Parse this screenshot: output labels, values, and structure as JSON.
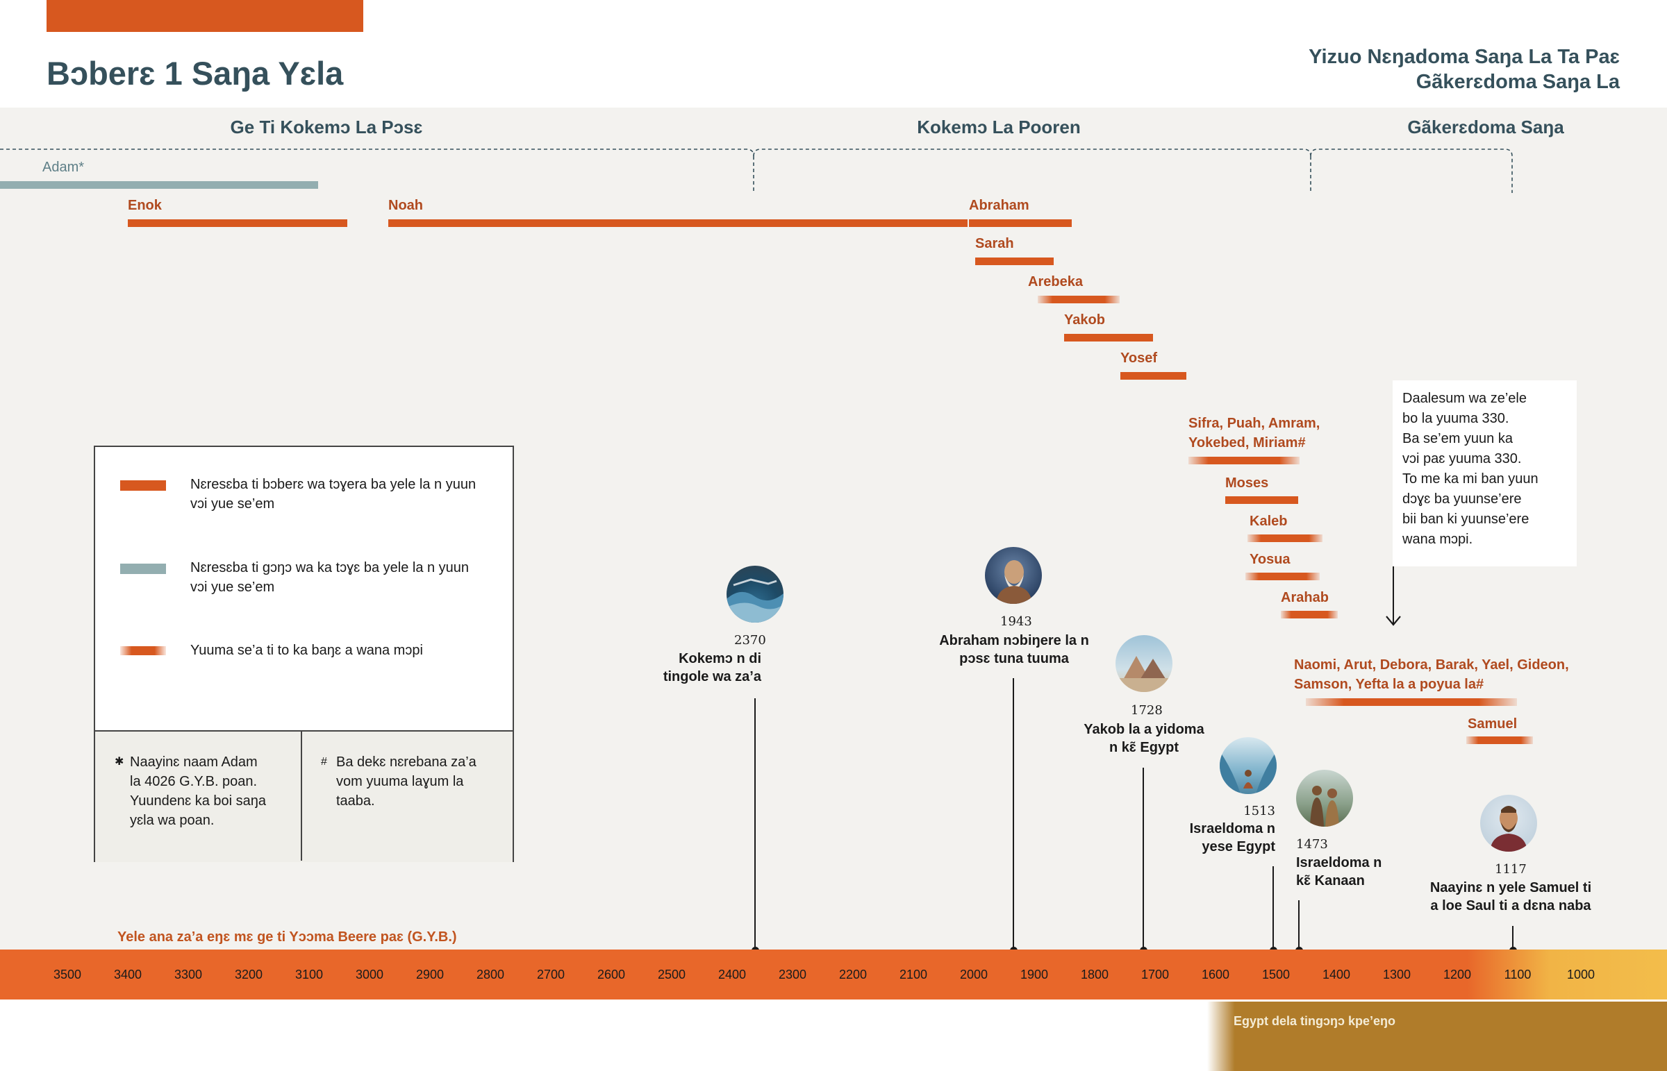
{
  "title": "Bɔberɛ 1 Saŋa Yɛla",
  "top_right": {
    "line1": "Yizuo Nɛŋadoma Saŋa La Ta Paɛ",
    "line2": "Gãkerɛdoma Saŋa La"
  },
  "periods": [
    "Ge Ti Kokemɔ La Pɔsɛ",
    "Kokemɔ La Pooren",
    "Gãkerɛdoma Saŋa"
  ],
  "people": [
    {
      "name": "Adam*",
      "style": "gray"
    },
    {
      "name": "Enok",
      "style": "solid"
    },
    {
      "name": "Noah",
      "style": "solid"
    },
    {
      "name": "Abraham",
      "style": "solid"
    },
    {
      "name": "Sarah",
      "style": "solid"
    },
    {
      "name": "Arebeka",
      "style": "fade"
    },
    {
      "name": "Yakob",
      "style": "solid"
    },
    {
      "name": "Yosef",
      "style": "solid"
    },
    {
      "name": "Sifra, Puah, Amram,",
      "name2": "Yokebed, Miriam#",
      "style": "fade"
    },
    {
      "name": "Moses",
      "style": "solid"
    },
    {
      "name": "Kaleb",
      "style": "fade"
    },
    {
      "name": "Yosua",
      "style": "fade"
    },
    {
      "name": "Arahab",
      "style": "fade"
    },
    {
      "name": "Naomi, Arut, Debora, Barak, Yael, Gideon,",
      "name2": "Samson, Yefta la a poyua la#",
      "style": "fade"
    },
    {
      "name": "Samuel",
      "style": "fade"
    }
  ],
  "legend": {
    "solid": {
      "line1": "Nɛresɛba ti bɔberɛ wa tɔɣera ba yele la n yuun",
      "line2": "vɔi yue se’em",
      "color": "#d7581f"
    },
    "gray": {
      "line1": "Nɛresɛba ti gɔŋɔ wa ka tɔɣɛ ba yele la n yuun",
      "line2": "vɔi yue se’em",
      "color": "#93aeb0"
    },
    "fade": {
      "line1": "Yuuma se’a ti to ka baŋɛ a wana mɔpi"
    }
  },
  "notes": {
    "asterisk": {
      "symbol": "✱",
      "lines": [
        "Naayinɛ naam Adam",
        "la 4026 G.Y.B. poan.",
        "Yuundenɛ ka boi saŋa",
        "yɛla wa poan."
      ]
    },
    "hash": {
      "symbol": "#",
      "lines": [
        "Ba dekɛ nɛrebana za’a",
        "vom yuuma laɣum la",
        "taaba."
      ]
    }
  },
  "infobox": {
    "lines": [
      "Daalesum wa ze’ele",
      "bo la yuuma 330.",
      "Ba se’em yuun ka",
      "vɔi paɛ yuuma 330.",
      "To me ka mi ban yuun",
      "dɔɣɛ ba yuunse’ere",
      "bii ban ki yuunse’ere",
      "wana mɔpi."
    ]
  },
  "events": [
    {
      "year": "2370",
      "line1": "Kokemɔ n di",
      "line2": "tingole wa za’a",
      "icon": "flood-icon"
    },
    {
      "year": "1943",
      "line1": "Abraham nɔbiŋere la n",
      "line2": "pɔsɛ tuna tuuma",
      "icon": "abraham-icon"
    },
    {
      "year": "1728",
      "line1": "Yakob la a yidoma",
      "line2": "n kɛ̃ Egypt",
      "icon": "pyramids-icon"
    },
    {
      "year": "1513",
      "line1": "Israeldoma n",
      "line2": "yese Egypt",
      "icon": "red-sea-icon"
    },
    {
      "year": "1473",
      "line1": "Israeldoma n",
      "line2": "kɛ̃ Kanaan",
      "icon": "spies-icon"
    },
    {
      "year": "1117",
      "line1": "Naayinɛ n yele Samuel ti",
      "line2": "a loe Saul ti a dɛna naba",
      "icon": "saul-icon"
    }
  ],
  "axis": {
    "caption": "Yele ana za’a eŋɛ mɛ ge ti Yɔɔma Beere paɛ (G.Y.B.)",
    "ticks": [
      "3500",
      "3400",
      "3300",
      "3200",
      "3100",
      "3000",
      "2900",
      "2800",
      "2700",
      "2600",
      "2500",
      "2400",
      "2300",
      "2200",
      "2100",
      "2000",
      "1900",
      "1800",
      "1700",
      "1600",
      "1500",
      "1400",
      "1300",
      "1200",
      "1100",
      "1000"
    ]
  },
  "egypt_band": "Egypt dela tingɔŋɔ kpe’eŋo",
  "colors": {
    "accent": "#d7581f",
    "gray": "#93aeb0",
    "title": "#35505b"
  }
}
